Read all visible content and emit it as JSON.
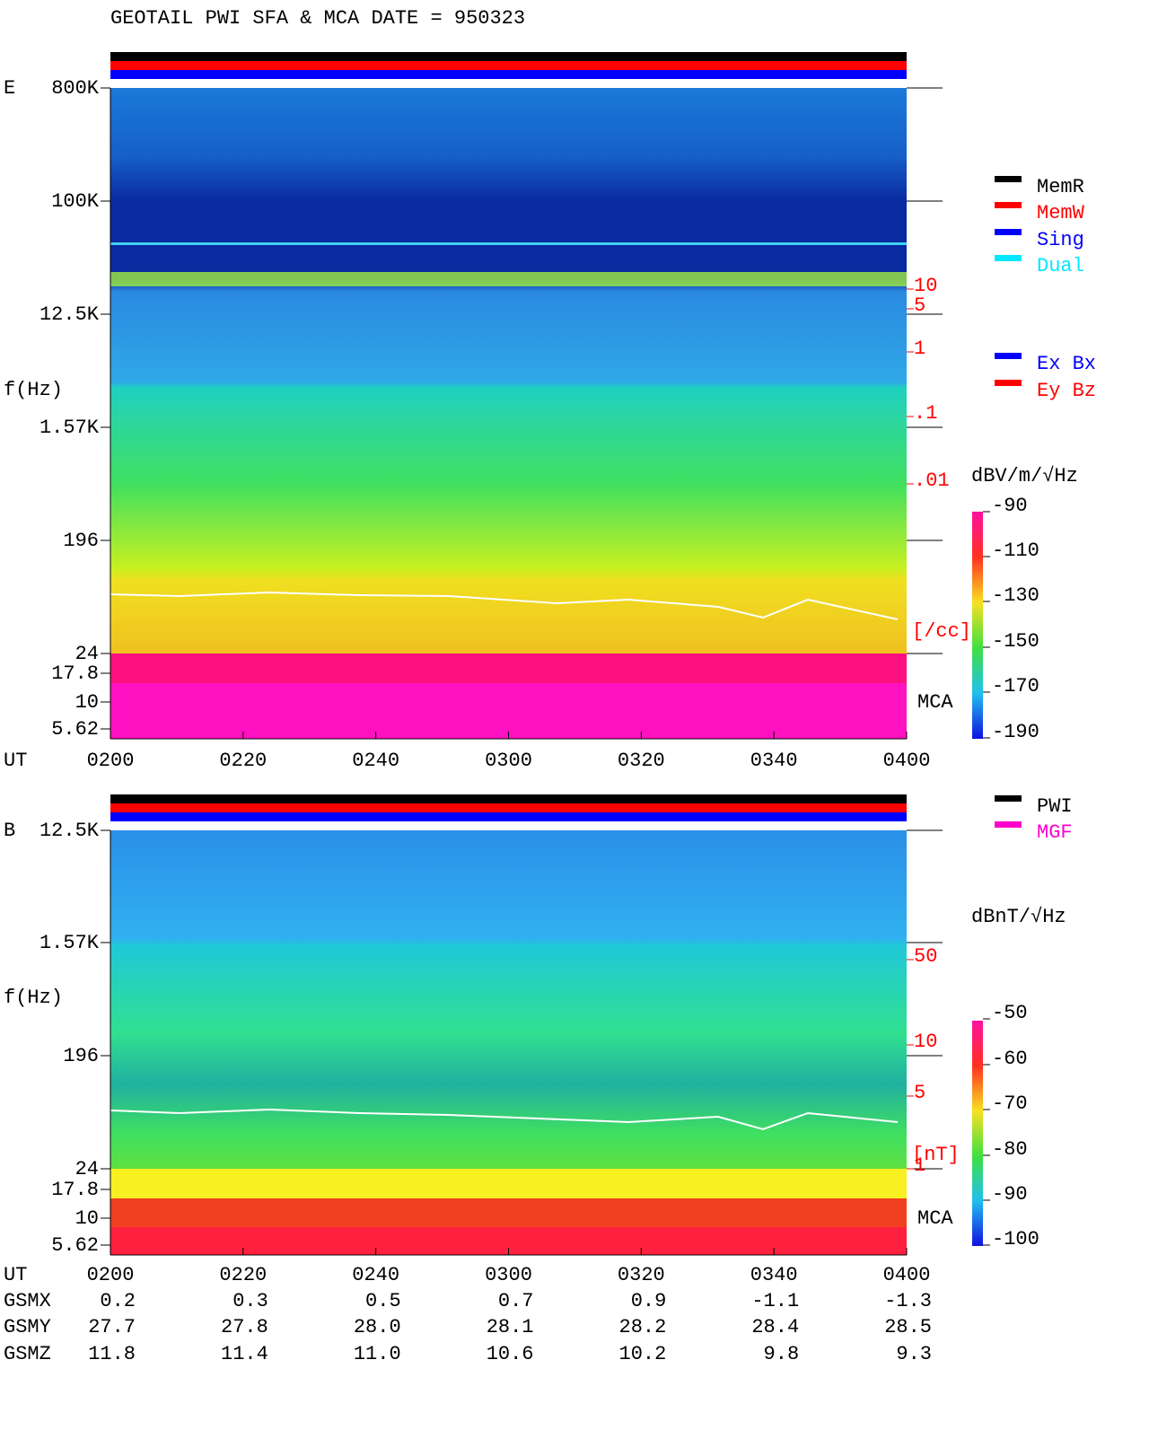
{
  "title": "GEOTAIL  PWI SFA & MCA   DATE = 950323",
  "panels": [
    {
      "label": "E",
      "y_axis_label": "f(Hz)",
      "freq_ticks": [
        "800K",
        "100K",
        "12.5K",
        "1.57K",
        "196",
        "24",
        "17.8",
        "10",
        "5.62"
      ],
      "mca_label": "MCA",
      "x_axis_label": "UT",
      "time_ticks": [
        "0200",
        "0220",
        "0240",
        "0300",
        "0320",
        "0340",
        "0400"
      ],
      "legend": [
        {
          "name": "MemR",
          "color": "#000000"
        },
        {
          "name": "MemW",
          "color": "#ff0000"
        },
        {
          "name": "Sing",
          "color": "#0000ff"
        },
        {
          "name": "Dual",
          "color": "#00e8ff"
        }
      ],
      "legend2": [
        {
          "name": "Ex Bx",
          "color": "#0000ff"
        },
        {
          "name": "Ey Bz",
          "color": "#ff0000"
        }
      ],
      "right_scale": {
        "ticks": [
          "10",
          "5",
          "1",
          ".1",
          ".01"
        ],
        "unit": "[/cc]"
      },
      "colorbar": {
        "unit": "dBV/m/√Hz",
        "ticks": [
          "-90",
          "-110",
          "-130",
          "-150",
          "-170",
          "-190"
        ]
      }
    },
    {
      "label": "B",
      "y_axis_label": "f(Hz)",
      "freq_ticks": [
        "12.5K",
        "1.57K",
        "196",
        "24",
        "17.8",
        "10",
        "5.62"
      ],
      "mca_label": "MCA",
      "x_axis_label": "UT",
      "time_ticks": [
        "0200",
        "0220",
        "0240",
        "0300",
        "0320",
        "0340",
        "0400"
      ],
      "legend": [
        {
          "name": "PWI",
          "color": "#000000"
        },
        {
          "name": "MGF",
          "color": "#ff00cc"
        }
      ],
      "right_scale": {
        "ticks": [
          "50",
          "10",
          "5",
          "1"
        ],
        "unit": "[nT]"
      },
      "colorbar": {
        "unit": "dBnT/√Hz",
        "ticks": [
          "-50",
          "-60",
          "-70",
          "-80",
          "-90",
          "-100"
        ]
      }
    }
  ],
  "orbit": {
    "rows": [
      {
        "label": "GSMX",
        "values": [
          "0.2",
          "0.3",
          "0.5",
          "0.7",
          "0.9",
          "-1.1",
          "-1.3"
        ]
      },
      {
        "label": "GSMY",
        "values": [
          "27.7",
          "27.8",
          "28.0",
          "28.1",
          "28.2",
          "28.4",
          "28.5"
        ]
      },
      {
        "label": "GSMZ",
        "values": [
          "11.8",
          "11.4",
          "11.0",
          "10.6",
          "10.2",
          "9.8",
          "9.3"
        ]
      }
    ]
  }
}
